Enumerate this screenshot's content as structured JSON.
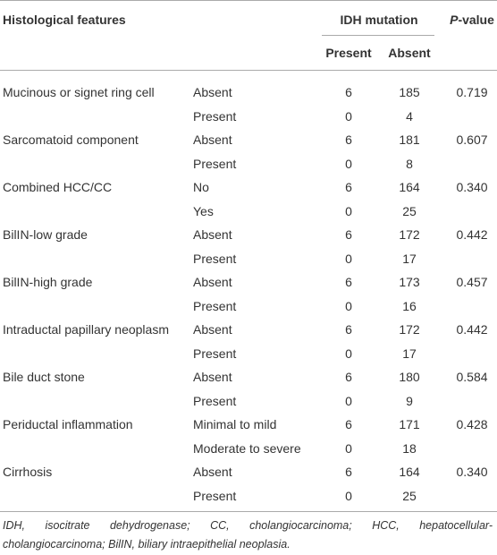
{
  "header": {
    "feature": "Histological features",
    "idh": "IDH mutation",
    "p_value": {
      "italic": "P",
      "rest": "-value"
    },
    "present": "Present",
    "absent": "Absent"
  },
  "groups": [
    {
      "feature": "Mucinous or signet ring cell",
      "p_value": "0.719",
      "rows": [
        {
          "level": "Absent",
          "present": "6",
          "absent": "185"
        },
        {
          "level": "Present",
          "present": "0",
          "absent": "4"
        }
      ]
    },
    {
      "feature": "Sarcomatoid component",
      "p_value": "0.607",
      "rows": [
        {
          "level": "Absent",
          "present": "6",
          "absent": "181"
        },
        {
          "level": "Present",
          "present": "0",
          "absent": "8"
        }
      ]
    },
    {
      "feature": "Combined HCC/CC",
      "p_value": "0.340",
      "rows": [
        {
          "level": "No",
          "present": "6",
          "absent": "164"
        },
        {
          "level": "Yes",
          "present": "0",
          "absent": "25"
        }
      ]
    },
    {
      "feature": "BilIN-low grade",
      "p_value": "0.442",
      "rows": [
        {
          "level": "Absent",
          "present": "6",
          "absent": "172"
        },
        {
          "level": "Present",
          "present": "0",
          "absent": "17"
        }
      ]
    },
    {
      "feature": "BilIN-high grade",
      "p_value": "0.457",
      "rows": [
        {
          "level": "Absent",
          "present": "6",
          "absent": "173"
        },
        {
          "level": "Present",
          "present": "0",
          "absent": "16"
        }
      ]
    },
    {
      "feature": "Intraductal papillary neoplasm",
      "p_value": "0.442",
      "rows": [
        {
          "level": "Absent",
          "present": "6",
          "absent": "172"
        },
        {
          "level": "Present",
          "present": "0",
          "absent": "17"
        }
      ]
    },
    {
      "feature": "Bile duct stone",
      "p_value": "0.584",
      "rows": [
        {
          "level": "Absent",
          "present": "6",
          "absent": "180"
        },
        {
          "level": "Present",
          "present": "0",
          "absent": "9"
        }
      ]
    },
    {
      "feature": "Periductal inflammation",
      "p_value": "0.428",
      "rows": [
        {
          "level": "Minimal to mild",
          "present": "6",
          "absent": "171"
        },
        {
          "level": "Moderate to severe",
          "present": "0",
          "absent": "18"
        }
      ]
    },
    {
      "feature": "Cirrhosis",
      "p_value": "0.340",
      "rows": [
        {
          "level": "Absent",
          "present": "6",
          "absent": "164"
        },
        {
          "level": "Present",
          "present": "0",
          "absent": "25"
        }
      ]
    }
  ],
  "footnote": "IDH, isocitrate dehydrogenase; CC, cholangiocarcinoma; HCC, hepatocellular-cholangiocarcinoma; BilIN, biliary intraepithelial neoplasia."
}
